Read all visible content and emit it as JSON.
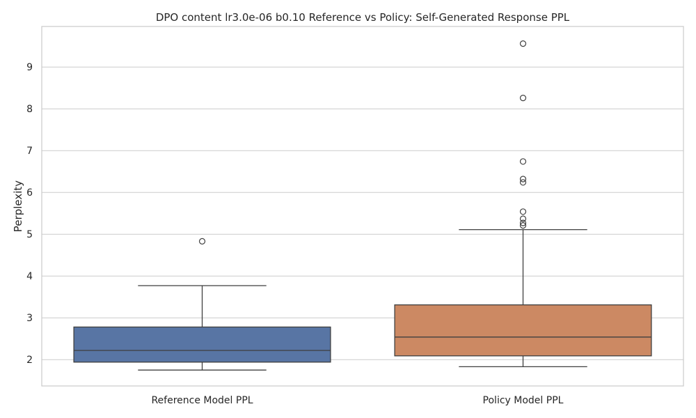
{
  "chart_data": {
    "type": "box",
    "title": "DPO content lr3.0e-06 b0.10 Reference vs Policy: Self-Generated Response PPL",
    "xlabel": "",
    "ylabel": "Perplexity",
    "ylim": [
      1.37,
      9.97
    ],
    "yticks": [
      2,
      3,
      4,
      5,
      6,
      7,
      8,
      9
    ],
    "grid": true,
    "categories": [
      "Reference Model PPL",
      "Policy Model PPL"
    ],
    "boxes": [
      {
        "name": "Reference Model PPL",
        "color": "#5875a4",
        "whisker_low": 1.75,
        "q1": 1.94,
        "median": 2.22,
        "q3": 2.78,
        "whisker_high": 3.77,
        "outliers": [
          4.83
        ]
      },
      {
        "name": "Policy Model PPL",
        "color": "#cc8963",
        "whisker_low": 1.83,
        "q1": 2.09,
        "median": 2.54,
        "q3": 3.31,
        "whisker_high": 5.11,
        "outliers": [
          5.21,
          5.27,
          5.37,
          5.54,
          6.24,
          6.32,
          6.74,
          8.26,
          9.56
        ]
      }
    ]
  }
}
